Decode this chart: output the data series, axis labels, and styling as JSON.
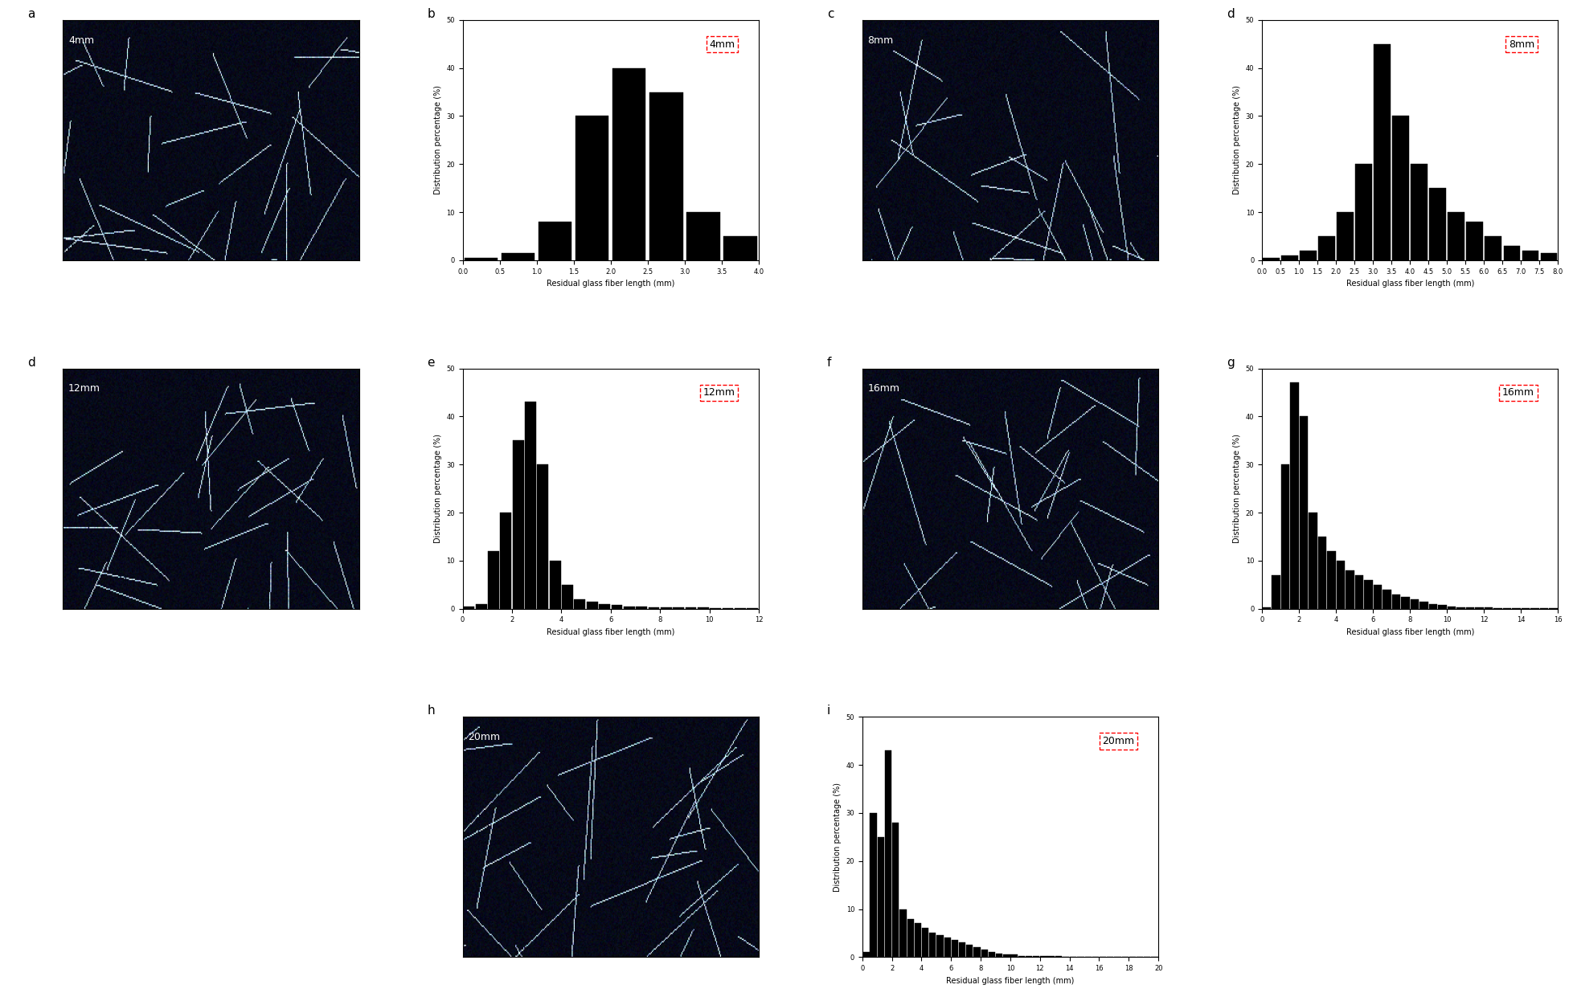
{
  "panel_labels": [
    "a",
    "b",
    "c",
    "d",
    "e",
    "f",
    "g",
    "h",
    "i"
  ],
  "fiber_labels": [
    "4mm",
    "8mm",
    "12mm",
    "16mm",
    "20mm"
  ],
  "hist_4mm": {
    "label": "4mm",
    "x_edges": [
      0.0,
      0.5,
      1.0,
      1.5,
      2.0,
      2.5,
      3.0,
      3.5,
      4.0
    ],
    "values": [
      0.5,
      1.5,
      8.0,
      30.0,
      40.0,
      35.0,
      10.0,
      5.0
    ],
    "xlim": [
      0.0,
      4.0
    ],
    "ylim": [
      0,
      50
    ],
    "xticks": [
      0.0,
      0.5,
      1.0,
      1.5,
      2.0,
      2.5,
      3.0,
      3.5,
      4.0
    ],
    "yticks": [
      0,
      10,
      20,
      30,
      40,
      50
    ]
  },
  "hist_8mm": {
    "label": "8mm",
    "x_edges": [
      0.0,
      0.5,
      1.0,
      1.5,
      2.0,
      2.5,
      3.0,
      3.5,
      4.0,
      4.5,
      5.0,
      5.5,
      6.0,
      6.5,
      7.0,
      7.5,
      8.0
    ],
    "values": [
      0.5,
      1.0,
      2.0,
      5.0,
      10.0,
      20.0,
      45.0,
      30.0,
      20.0,
      15.0,
      10.0,
      8.0,
      5.0,
      3.0,
      2.0,
      1.5
    ],
    "xlim": [
      0.0,
      8.0
    ],
    "ylim": [
      0,
      50
    ],
    "xticks": [
      0.0,
      0.5,
      1.0,
      1.5,
      2.0,
      2.5,
      3.0,
      3.5,
      4.0,
      4.5,
      5.0,
      5.5,
      6.0,
      6.5,
      7.0,
      7.5,
      8.0
    ],
    "yticks": [
      0,
      10,
      20,
      30,
      40,
      50
    ]
  },
  "hist_12mm": {
    "label": "12mm",
    "x_edges": [
      0.0,
      0.5,
      1.0,
      1.5,
      2.0,
      2.5,
      3.0,
      3.5,
      4.0,
      4.5,
      5.0,
      5.5,
      6.0,
      6.5,
      7.0,
      7.5,
      8.0,
      8.5,
      9.0,
      9.5,
      10.0,
      10.5,
      11.0,
      11.5,
      12.0
    ],
    "values": [
      0.5,
      1.0,
      12.0,
      20.0,
      35.0,
      43.0,
      30.0,
      10.0,
      5.0,
      2.0,
      1.5,
      1.0,
      0.8,
      0.5,
      0.5,
      0.3,
      0.3,
      0.2,
      0.2,
      0.2,
      0.1,
      0.1,
      0.1,
      0.1
    ],
    "xlim": [
      0.0,
      12.0
    ],
    "ylim": [
      0,
      50
    ],
    "xticks": [
      0,
      2,
      4,
      6,
      8,
      10,
      12
    ],
    "yticks": [
      0,
      10,
      20,
      30,
      40,
      50
    ]
  },
  "hist_16mm": {
    "label": "16mm",
    "x_edges": [
      0.0,
      0.5,
      1.0,
      1.5,
      2.0,
      2.5,
      3.0,
      3.5,
      4.0,
      4.5,
      5.0,
      5.5,
      6.0,
      6.5,
      7.0,
      7.5,
      8.0,
      8.5,
      9.0,
      9.5,
      10.0,
      10.5,
      11.0,
      11.5,
      12.0,
      12.5,
      13.0,
      13.5,
      14.0,
      14.5,
      15.0,
      15.5,
      16.0
    ],
    "values": [
      0.3,
      7.0,
      30.0,
      47.0,
      40.0,
      20.0,
      15.0,
      12.0,
      10.0,
      8.0,
      7.0,
      6.0,
      5.0,
      4.0,
      3.0,
      2.5,
      2.0,
      1.5,
      1.0,
      0.8,
      0.5,
      0.3,
      0.3,
      0.2,
      0.2,
      0.1,
      0.1,
      0.1,
      0.1,
      0.1,
      0.1,
      0.1
    ],
    "xlim": [
      0.0,
      16.0
    ],
    "ylim": [
      0,
      50
    ],
    "xticks": [
      0,
      2,
      4,
      6,
      8,
      10,
      12,
      14,
      16
    ],
    "yticks": [
      0,
      10,
      20,
      30,
      40,
      50
    ]
  },
  "hist_20mm": {
    "label": "20mm",
    "x_edges": [
      0.0,
      0.5,
      1.0,
      1.5,
      2.0,
      2.5,
      3.0,
      3.5,
      4.0,
      4.5,
      5.0,
      5.5,
      6.0,
      6.5,
      7.0,
      7.5,
      8.0,
      8.5,
      9.0,
      9.5,
      10.0,
      10.5,
      11.0,
      11.5,
      12.0,
      12.5,
      13.0,
      13.5,
      14.0,
      14.5,
      15.0,
      15.5,
      16.0,
      16.5,
      17.0,
      17.5,
      18.0,
      18.5,
      19.0,
      19.5,
      20.0
    ],
    "values": [
      1.0,
      30.0,
      25.0,
      43.0,
      28.0,
      10.0,
      8.0,
      7.0,
      6.0,
      5.0,
      4.5,
      4.0,
      3.5,
      3.0,
      2.5,
      2.0,
      1.5,
      1.0,
      0.8,
      0.5,
      0.5,
      0.3,
      0.3,
      0.3,
      0.2,
      0.2,
      0.2,
      0.1,
      0.1,
      0.1,
      0.1,
      0.1,
      0.1,
      0.1,
      0.1,
      0.1,
      0.1,
      0.1,
      0.1,
      0.1
    ],
    "xlim": [
      0.0,
      20.0
    ],
    "ylim": [
      0,
      50
    ],
    "xticks": [
      0,
      2,
      4,
      6,
      8,
      10,
      12,
      14,
      16,
      18,
      20
    ],
    "yticks": [
      0,
      10,
      20,
      30,
      40,
      50
    ]
  },
  "bar_color": "#000000",
  "bg_color": "#ffffff",
  "xlabel": "Residual glass fiber length (mm)",
  "ylabel": "Distribution percentage (%)",
  "label_color": "#d40000",
  "label_fontsize": 8,
  "axis_fontsize": 7,
  "tick_fontsize": 6
}
